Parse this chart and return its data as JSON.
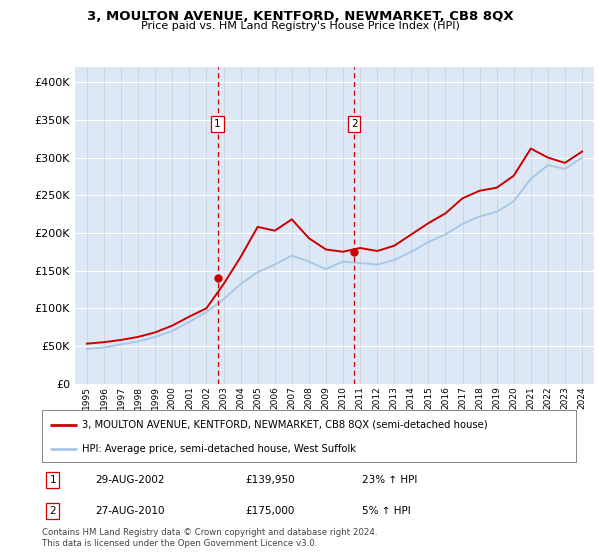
{
  "title": "3, MOULTON AVENUE, KENTFORD, NEWMARKET, CB8 8QX",
  "subtitle": "Price paid vs. HM Land Registry's House Price Index (HPI)",
  "legend_property": "3, MOULTON AVENUE, KENTFORD, NEWMARKET, CB8 8QX (semi-detached house)",
  "legend_hpi": "HPI: Average price, semi-detached house, West Suffolk",
  "sale1_date": "29-AUG-2002",
  "sale1_price": 139950,
  "sale1_pct": "23% ↑ HPI",
  "sale2_date": "27-AUG-2010",
  "sale2_price": 175000,
  "sale2_pct": "5% ↑ HPI",
  "copyright": "Contains HM Land Registry data © Crown copyright and database right 2024.\nThis data is licensed under the Open Government Licence v3.0.",
  "line_color_property": "#cc0000",
  "line_color_hpi": "#a8c8e8",
  "vline_color": "#cc0000",
  "bg_color": "#dce8f5",
  "sale1_x": 2002.65,
  "sale2_x": 2010.65,
  "years": [
    1995,
    1996,
    1997,
    1998,
    1999,
    2000,
    2001,
    2002,
    2003,
    2004,
    2005,
    2006,
    2007,
    2008,
    2009,
    2010,
    2011,
    2012,
    2013,
    2014,
    2015,
    2016,
    2017,
    2018,
    2019,
    2020,
    2021,
    2022,
    2023,
    2024
  ],
  "hpi_values": [
    46000,
    48000,
    52000,
    56000,
    62000,
    70000,
    82000,
    95000,
    112000,
    132000,
    148000,
    158000,
    170000,
    162000,
    152000,
    162000,
    160000,
    158000,
    164000,
    175000,
    188000,
    198000,
    212000,
    222000,
    228000,
    242000,
    272000,
    290000,
    285000,
    300000
  ],
  "prop_values": [
    53000,
    55000,
    58000,
    62000,
    68000,
    77000,
    89000,
    100000,
    132000,
    168000,
    208000,
    203000,
    218000,
    193000,
    178000,
    175000,
    180000,
    176000,
    183000,
    198000,
    213000,
    226000,
    246000,
    256000,
    260000,
    276000,
    312000,
    300000,
    293000,
    308000
  ],
  "ylim": [
    0,
    420000
  ],
  "yticks": [
    0,
    50000,
    100000,
    150000,
    200000,
    250000,
    300000,
    350000,
    400000
  ]
}
